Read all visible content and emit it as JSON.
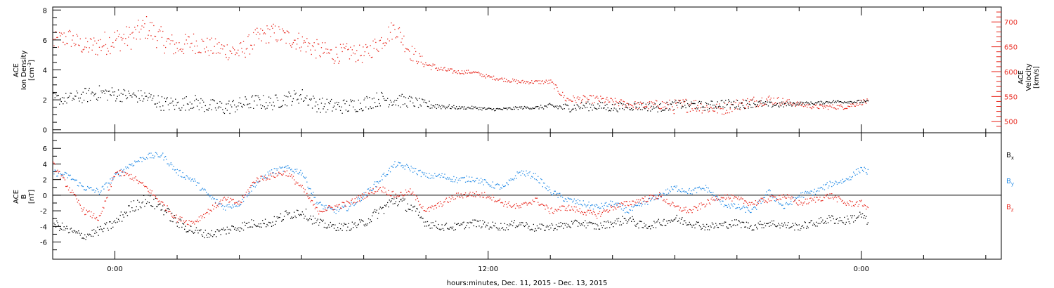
{
  "colors": {
    "axis": "#000000",
    "black": "#000000",
    "red": "#e8241a",
    "blue": "#1e88e5"
  },
  "chart_data": [
    {
      "type": "scatter",
      "panel": "top",
      "ylabel_lines": [
        "ACE",
        "Ion Density",
        "[cm"
      ],
      "ylabel_sup": "-3",
      "ylabel_close": "]",
      "right_ylabel_lines": [
        "ACE",
        "Velocity",
        "[km/s]"
      ],
      "ylim": [
        -0.2,
        8.2
      ],
      "yticks": [
        0,
        2,
        4,
        6,
        8
      ],
      "right_ylim": [
        477,
        730
      ],
      "right_yticks": [
        500,
        550,
        600,
        650,
        700
      ],
      "x_range_hours": [
        -2,
        28.5
      ],
      "series": [
        {
          "color": "#000000",
          "axis": "left",
          "x_hours": [
            -2,
            -1.5,
            -1,
            -0.5,
            0,
            0.5,
            1,
            1.5,
            2,
            2.5,
            3,
            3.5,
            4,
            4.5,
            5,
            5.5,
            6,
            6.5,
            7,
            7.5,
            8,
            8.5,
            9,
            9.5,
            10,
            10.5,
            11,
            11.5,
            12,
            12.5,
            13,
            13.5,
            14,
            14.5,
            15,
            15.5,
            16,
            16.5,
            17,
            17.5,
            18,
            18.5,
            19,
            19.5,
            20,
            20.5,
            21,
            21.5,
            22,
            22.5,
            23,
            23.5,
            24,
            24.2
          ],
          "values": [
            2.1,
            2.1,
            2.3,
            2.5,
            2.4,
            2.3,
            2.2,
            1.8,
            1.7,
            1.9,
            1.6,
            1.5,
            1.7,
            1.9,
            1.8,
            2.1,
            2.3,
            1.7,
            1.6,
            1.6,
            1.8,
            2.1,
            2.0,
            1.9,
            1.7,
            1.6,
            1.5,
            1.5,
            1.4,
            1.4,
            1.5,
            1.5,
            1.6,
            1.5,
            1.6,
            1.6,
            1.5,
            1.6,
            1.6,
            1.5,
            1.7,
            1.7,
            1.6,
            1.8,
            1.7,
            1.8,
            1.7,
            1.7,
            1.8,
            1.8,
            1.9,
            1.9,
            1.9,
            1.9
          ],
          "spread": [
            0.4,
            0.4,
            0.5,
            0.5,
            0.5,
            0.4,
            0.5,
            0.5,
            0.5,
            0.5,
            0.5,
            0.5,
            0.5,
            0.5,
            0.5,
            0.5,
            0.5,
            0.5,
            0.5,
            0.5,
            0.5,
            0.5,
            0.5,
            0.4,
            0.3,
            0.2,
            0.1,
            0.1,
            0.1,
            0.1,
            0.1,
            0.1,
            0.2,
            0.3,
            0.3,
            0.3,
            0.3,
            0.3,
            0.3,
            0.3,
            0.3,
            0.3,
            0.3,
            0.3,
            0.3,
            0.3,
            0.2,
            0.2,
            0.1,
            0.1,
            0.1,
            0.1,
            0.1,
            0.1
          ]
        },
        {
          "color": "#e8241a",
          "axis": "right",
          "x_hours": [
            -2,
            -1.5,
            -1,
            -0.5,
            0,
            0.5,
            1,
            1.5,
            2,
            2.5,
            3,
            3.5,
            4,
            4.5,
            5,
            5.5,
            6,
            6.5,
            7,
            7.5,
            8,
            8.5,
            9,
            9.5,
            10,
            10.5,
            11,
            11.5,
            12,
            12.5,
            13,
            13.5,
            14,
            14.5,
            15,
            15.5,
            16,
            16.5,
            17,
            17.5,
            18,
            18.5,
            19,
            19.5,
            20,
            20.5,
            21,
            21.5,
            22,
            22.5,
            23,
            23.5,
            24,
            24.2
          ],
          "values": [
            660,
            670,
            650,
            655,
            665,
            670,
            690,
            665,
            650,
            660,
            650,
            645,
            640,
            665,
            680,
            670,
            660,
            645,
            635,
            640,
            635,
            660,
            690,
            640,
            615,
            605,
            600,
            600,
            590,
            585,
            580,
            580,
            580,
            545,
            545,
            545,
            540,
            535,
            532,
            535,
            530,
            535,
            528,
            525,
            535,
            540,
            545,
            540,
            535,
            530,
            530,
            530,
            540,
            540
          ],
          "spread": [
            20,
            20,
            18,
            25,
            25,
            25,
            25,
            25,
            22,
            22,
            20,
            20,
            20,
            22,
            20,
            20,
            20,
            20,
            20,
            18,
            18,
            20,
            20,
            18,
            8,
            6,
            4,
            4,
            4,
            4,
            4,
            4,
            5,
            8,
            8,
            8,
            8,
            8,
            8,
            10,
            15,
            15,
            12,
            12,
            12,
            12,
            10,
            8,
            5,
            5,
            5,
            5,
            6,
            6
          ]
        }
      ]
    },
    {
      "type": "scatter",
      "panel": "bottom",
      "ylabel_lines": [
        "ACE",
        "B",
        "[nT]"
      ],
      "ylim": [
        -8.2,
        8.0
      ],
      "yticks": [
        -6,
        -4,
        -2,
        0,
        2,
        4,
        6
      ],
      "x_range_hours": [
        -2,
        28.5
      ],
      "xticks": [
        {
          "hour": 0,
          "label": "0:00"
        },
        {
          "hour": 12,
          "label": "12:00"
        },
        {
          "hour": 24,
          "label": "0:00"
        }
      ],
      "xlabel": "hours:minutes, Dec. 11, 2015 - Dec. 13, 2015",
      "series": [
        {
          "name": "B",
          "sub": "x",
          "color": "#000000",
          "x_hours": [
            -2,
            -1.5,
            -1,
            -0.5,
            0,
            0.5,
            1,
            1.5,
            2,
            2.5,
            3,
            3.5,
            4,
            4.5,
            5,
            5.5,
            6,
            6.5,
            7,
            7.5,
            8,
            8.5,
            9,
            9.5,
            10,
            10.5,
            11,
            11.5,
            12,
            12.5,
            13,
            13.5,
            14,
            14.5,
            15,
            15.5,
            16,
            16.5,
            17,
            17.5,
            18,
            18.5,
            19,
            19.5,
            20,
            20.5,
            21,
            21.5,
            22,
            22.5,
            23,
            23.5,
            24,
            24.2
          ],
          "values": [
            -3.5,
            -4.5,
            -5.2,
            -4.5,
            -3.5,
            -1.5,
            -0.5,
            -1.5,
            -3.5,
            -4.5,
            -5,
            -4.5,
            -4,
            -3.5,
            -3.5,
            -2.5,
            -2,
            -3.5,
            -4,
            -4,
            -3.5,
            -2,
            -0.5,
            -1.5,
            -3.5,
            -4,
            -4,
            -3.5,
            -3.8,
            -4,
            -3.5,
            -4.2,
            -4,
            -3.8,
            -3.5,
            -4,
            -3.5,
            -3,
            -4,
            -3.5,
            -3,
            -3.5,
            -4,
            -3.8,
            -3.5,
            -4,
            -3.5,
            -3.8,
            -4,
            -3.5,
            -3,
            -3.2,
            -2.5,
            -3.5
          ],
          "spread": [
            0.6,
            0.6,
            0.5,
            0.6,
            0.7,
            0.8,
            0.8,
            0.8,
            0.7,
            0.6,
            0.5,
            0.6,
            0.6,
            0.6,
            0.6,
            0.7,
            0.7,
            0.6,
            0.5,
            0.5,
            0.6,
            0.8,
            0.8,
            0.8,
            0.6,
            0.5,
            0.5,
            0.5,
            0.5,
            0.5,
            0.5,
            0.5,
            0.5,
            0.5,
            0.5,
            0.5,
            0.5,
            0.6,
            0.5,
            0.5,
            0.6,
            0.5,
            0.5,
            0.5,
            0.5,
            0.5,
            0.5,
            0.5,
            0.5,
            0.5,
            0.6,
            0.6,
            0.6,
            0.6
          ]
        },
        {
          "name": "B",
          "sub": "y",
          "color": "#1e88e5",
          "x_hours": [
            -2,
            -1.5,
            -1,
            -0.5,
            0,
            0.5,
            1,
            1.5,
            2,
            2.5,
            3,
            3.5,
            4,
            4.5,
            5,
            5.5,
            6,
            6.5,
            7,
            7.5,
            8,
            8.5,
            9,
            9.5,
            10,
            10.5,
            11,
            11.5,
            12,
            12.5,
            13,
            13.5,
            14,
            14.5,
            15,
            15.5,
            16,
            16.5,
            17,
            17.5,
            18,
            18.5,
            19,
            19.5,
            20,
            20.5,
            21,
            21.5,
            22,
            22.5,
            23,
            23.5,
            24,
            24.2
          ],
          "values": [
            3,
            2.5,
            1,
            0.5,
            2.5,
            4,
            5,
            5.2,
            3,
            2,
            0,
            -1.5,
            -1,
            1.5,
            3,
            3.5,
            3,
            -1,
            -2,
            -1.5,
            0,
            2,
            4,
            3.5,
            2.5,
            2.5,
            2,
            2.2,
            1.5,
            1,
            3,
            2.5,
            0.5,
            -0.5,
            -1,
            -1.5,
            -1,
            -2,
            -1,
            0,
            1,
            0.5,
            1,
            -1,
            -1.5,
            -2,
            0.5,
            -1.5,
            0,
            0.5,
            1.5,
            2,
            3.5,
            3
          ]
        },
        {
          "name": "B",
          "sub": "z",
          "color": "#e8241a",
          "x_hours": [
            -2,
            -1.5,
            -1,
            -0.5,
            0,
            0.5,
            1,
            1.5,
            2,
            2.5,
            3,
            3.5,
            4,
            4.5,
            5,
            5.5,
            6,
            6.5,
            7,
            7.5,
            8,
            8.5,
            9,
            9.5,
            10,
            10.5,
            11,
            11.5,
            12,
            12.5,
            13,
            13.5,
            14,
            14.5,
            15,
            15.5,
            16,
            16.5,
            17,
            17.5,
            18,
            18.5,
            19,
            19.5,
            20,
            20.5,
            21,
            21.5,
            22,
            22.5,
            23,
            23.5,
            24,
            24.2
          ],
          "values": [
            4,
            1,
            -2,
            -3,
            3,
            2.5,
            1,
            -1,
            -3,
            -3.5,
            -2,
            -0.5,
            -1,
            2,
            2.5,
            3,
            1,
            -2,
            -1.5,
            -1,
            0,
            1,
            0,
            0.5,
            -2,
            -1,
            0,
            0.2,
            0,
            -1,
            -1.5,
            -0.5,
            -2,
            -1.5,
            -2,
            -2.5,
            -1.5,
            -1,
            -0.5,
            0,
            -1.5,
            -2,
            -1,
            0,
            -0.5,
            -1,
            -0.5,
            0,
            -1,
            -0.5,
            0,
            -1,
            -1,
            -1.5
          ]
        }
      ],
      "legend": [
        {
          "label": "B",
          "sub": "x",
          "color": "#000000"
        },
        {
          "label": "B",
          "sub": "y",
          "color": "#1e88e5"
        },
        {
          "label": "B",
          "sub": "z",
          "color": "#e8241a"
        }
      ]
    }
  ]
}
